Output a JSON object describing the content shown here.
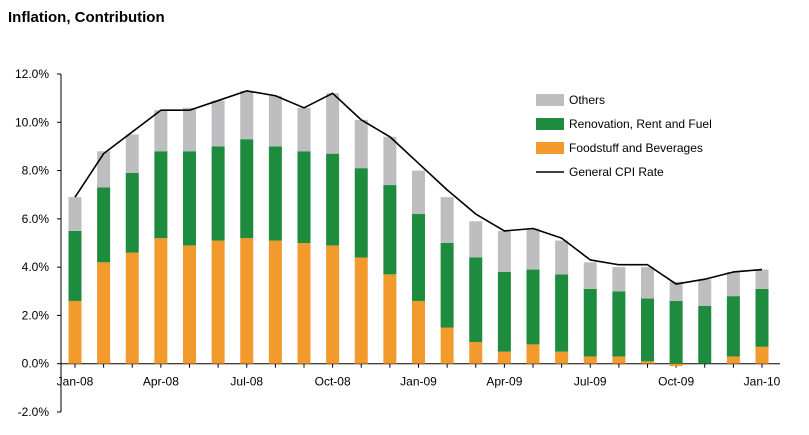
{
  "chart_data": {
    "type": "bar",
    "stacked": true,
    "title": "Inflation, Contribution",
    "xlabel": "",
    "ylabel": "",
    "ylim": [
      -2.0,
      12.0
    ],
    "y_ticks": [
      "-2.0%",
      "0.0%",
      "2.0%",
      "4.0%",
      "6.0%",
      "8.0%",
      "10.0%",
      "12.0%"
    ],
    "y_tick_values": [
      -2,
      0,
      2,
      4,
      6,
      8,
      10,
      12
    ],
    "categories": [
      "Jan-08",
      "Feb-08",
      "Mar-08",
      "Apr-08",
      "May-08",
      "Jun-08",
      "Jul-08",
      "Aug-08",
      "Sep-08",
      "Oct-08",
      "Nov-08",
      "Dec-08",
      "Jan-09",
      "Feb-09",
      "Mar-09",
      "Apr-09",
      "May-09",
      "Jun-09",
      "Jul-09",
      "Aug-09",
      "Sep-09",
      "Oct-09",
      "Nov-09",
      "Dec-09",
      "Jan-10"
    ],
    "x_tick_labels": [
      "Jan-08",
      "",
      "",
      "Apr-08",
      "",
      "",
      "Jul-08",
      "",
      "",
      "Oct-08",
      "",
      "",
      "Jan-09",
      "",
      "",
      "Apr-09",
      "",
      "",
      "Jul-09",
      "",
      "",
      "Oct-09",
      "",
      "",
      "Jan-10"
    ],
    "series": [
      {
        "name": "Foodstuff and Beverages",
        "color": "#F39A2D",
        "values": [
          2.6,
          4.2,
          4.6,
          5.2,
          4.9,
          5.1,
          5.2,
          5.1,
          5.0,
          4.9,
          4.4,
          3.7,
          2.6,
          1.5,
          0.9,
          0.5,
          0.8,
          0.5,
          0.3,
          0.3,
          0.1,
          -0.1,
          0.0,
          0.3,
          0.7
        ]
      },
      {
        "name": "Renovation, Rent and Fuel",
        "color": "#1E8C3F",
        "values": [
          2.9,
          3.1,
          3.3,
          3.6,
          3.9,
          3.9,
          4.1,
          3.9,
          3.8,
          3.8,
          3.7,
          3.7,
          3.6,
          3.5,
          3.5,
          3.3,
          3.1,
          3.2,
          2.8,
          2.7,
          2.6,
          2.6,
          2.4,
          2.5,
          2.4
        ]
      },
      {
        "name": "Others",
        "color": "#BEBEC0",
        "values": [
          1.4,
          1.5,
          1.6,
          1.7,
          1.8,
          1.9,
          2.0,
          2.1,
          1.8,
          2.5,
          2.0,
          2.0,
          1.8,
          1.9,
          1.5,
          1.7,
          1.7,
          1.4,
          1.1,
          1.0,
          1.3,
          0.8,
          1.1,
          1.0,
          0.8
        ]
      },
      {
        "name": "General CPI Rate",
        "type": "line",
        "color": "#000000",
        "values": [
          6.9,
          8.7,
          9.6,
          10.5,
          10.5,
          10.9,
          11.3,
          11.1,
          10.6,
          11.2,
          10.1,
          9.4,
          8.3,
          7.2,
          6.2,
          5.5,
          5.6,
          5.2,
          4.3,
          4.1,
          4.1,
          3.3,
          3.5,
          3.8,
          3.9
        ]
      }
    ],
    "legend": {
      "position": "top-right",
      "entries": [
        "Others",
        "Renovation, Rent and Fuel",
        "Foodstuff and Beverages",
        "General CPI Rate"
      ]
    },
    "grid": false
  }
}
